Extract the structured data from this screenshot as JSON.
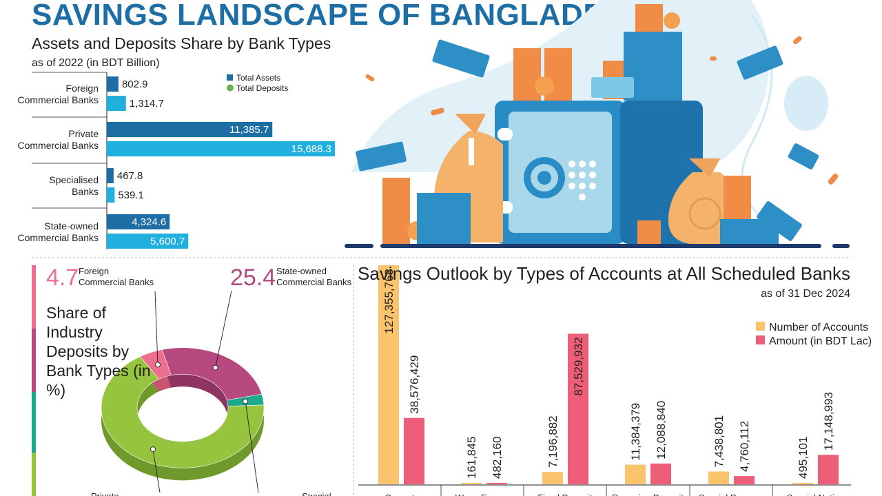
{
  "header": {
    "title": "SAVINGS LANDSCAPE OF BANGLADESH"
  },
  "assets": {
    "title": "Assets and Deposits Share by Bank Types",
    "subtitle": "as of 2022 (in BDT Billion)"
  },
  "donut_block": {
    "title": "Share of Industry Deposits by Bank Types (in %)"
  },
  "savings": {
    "title": "Savings Outlook by Types of Accounts at All Scheduled Banks",
    "subtitle": "as of 31 Dec 2024"
  },
  "colors": {
    "title_blue": "#1c6ea4",
    "assets_dark": "#1c6ea4",
    "deposits_light": "#1fb0dd",
    "accounts": "#f9c46b",
    "amount": "#ee5e78",
    "foreign": "#ec6f8d",
    "state": "#b6497e",
    "specialised": "#1bab8a",
    "private": "#96c43f"
  },
  "chart_data": [
    {
      "type": "bar",
      "orientation": "horizontal",
      "categories": [
        "Foreign Commercial Banks",
        "Private Commercial Banks",
        "Specialised Banks",
        "State-owned Commercial Banks"
      ],
      "category_lines": [
        [
          "Foreign",
          "Commercial Banks"
        ],
        [
          "Private",
          "Commercial Banks"
        ],
        [
          "Specialised",
          "Banks"
        ],
        [
          "State-owned",
          "Commercial Banks"
        ]
      ],
      "series": [
        {
          "name": "Total Assets",
          "values": [
            802.9,
            11385.7,
            467.8,
            4324.6
          ],
          "labels": [
            "802.9",
            "11,385.7",
            "467.8",
            "4,324.6"
          ]
        },
        {
          "name": "Total Deposits",
          "values": [
            1314.7,
            15688.3,
            539.1,
            5600.7
          ],
          "labels": [
            "1,314.7",
            "15,688.3",
            "539.1",
            "5,600.7"
          ]
        }
      ],
      "legend": "top-right"
    },
    {
      "type": "pie",
      "style": "donut-3d",
      "slices": [
        {
          "name": "Foreign Commercial Banks",
          "lines": [
            "Foreign",
            "Commercial Banks"
          ],
          "value": 4.7,
          "label": "4.7"
        },
        {
          "name": "State-owned Commercial Banks",
          "lines": [
            "State-owned",
            "Commercial Banks"
          ],
          "value": 25.4,
          "label": "25.4"
        },
        {
          "name": "Specialised Banks",
          "lines": [
            "Special"
          ],
          "value": 2.9,
          "label": ""
        },
        {
          "name": "Private Commercial Banks",
          "lines": [
            "Private"
          ],
          "value": 67.0,
          "label": ""
        }
      ]
    },
    {
      "type": "bar",
      "orientation": "vertical",
      "categories": [
        "Current",
        "Wage Earners",
        "Fixed Deposit",
        "Recurring Deposit",
        "Special Purpose",
        "Special Notice"
      ],
      "category_visible": [
        "Cur...",
        "Wage Earners'...",
        "Fixed Deposit...",
        "Recurring Deposit...",
        "Special P...",
        "Special Notic..."
      ],
      "series": [
        {
          "name": "Number of Accounts",
          "values": [
            127355768,
            161845,
            7196882,
            11384379,
            7438801,
            495101
          ],
          "labels": [
            "127,355,768",
            "161,845",
            "7,196,882",
            "11,384,379",
            "7,438,801",
            "495,101"
          ]
        },
        {
          "name": "Amount (in BDT Lac)",
          "values": [
            38576429,
            482160,
            87529932,
            12088840,
            4760112,
            17148993
          ],
          "labels": [
            "38,576,429",
            "482,160",
            "87,529,932",
            "12,088,840",
            "4,760,112",
            "17,148,993"
          ]
        }
      ],
      "ylim": [
        0,
        127355768
      ],
      "legend": "top-right"
    }
  ]
}
